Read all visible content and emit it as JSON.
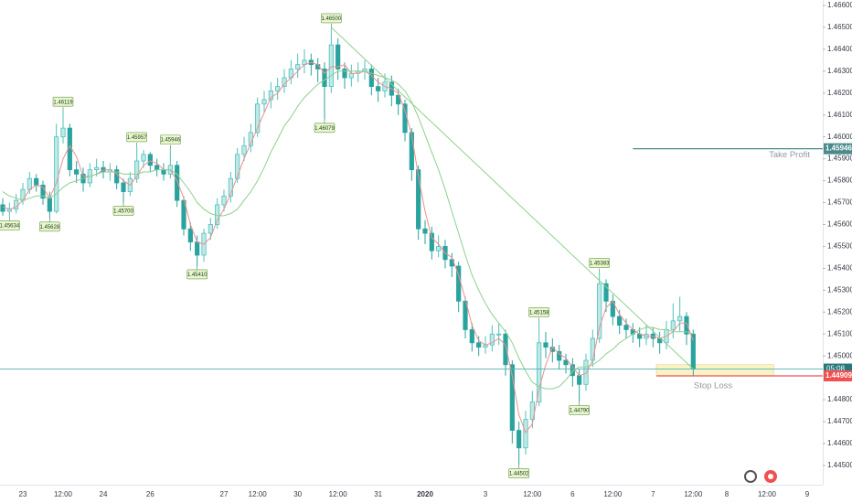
{
  "chart_data": {
    "type": "candlestick",
    "categories": [
      null,
      null,
      null,
      "23",
      null,
      null,
      null,
      null,
      null,
      "12:00",
      null,
      null,
      null,
      null,
      null,
      "24",
      null,
      null,
      null,
      null,
      null,
      null,
      "26",
      null,
      null,
      null,
      null,
      null,
      null,
      null,
      null,
      null,
      null,
      "27",
      null,
      null,
      null,
      null,
      "12:00",
      null,
      null,
      null,
      null,
      null,
      "30",
      null,
      null,
      null,
      null,
      null,
      "12:00",
      null,
      null,
      null,
      null,
      null,
      "31",
      null,
      null,
      null,
      null,
      null,
      null,
      "2020",
      null,
      null,
      null,
      null,
      null,
      null,
      null,
      null,
      "3",
      null,
      null,
      null,
      null,
      null,
      null,
      "12:00",
      null,
      null,
      null,
      null,
      null,
      "6",
      null,
      null,
      null,
      null,
      null,
      "12:00",
      null,
      null,
      null,
      null,
      null,
      "7",
      null,
      null,
      null,
      null,
      null,
      "12:00",
      null,
      null,
      null,
      null,
      "8",
      null,
      null,
      null,
      null,
      null,
      "12:00",
      null,
      null,
      null,
      null,
      null,
      "9",
      null
    ],
    "open": [
      1.4569,
      1.4566,
      1.4567,
      1.4571,
      1.4576,
      1.4581,
      1.4578,
      1.4572,
      1.4566,
      1.46,
      1.4604,
      1.4585,
      1.4583,
      1.4579,
      1.4585,
      1.4586,
      1.4584,
      1.4585,
      1.4579,
      1.4575,
      1.4581,
      1.4589,
      1.4592,
      1.4587,
      1.4585,
      1.4583,
      1.4587,
      1.4571,
      1.4558,
      1.4552,
      1.4546,
      1.4556,
      1.456,
      1.4569,
      1.4573,
      1.4581,
      1.4592,
      1.4596,
      1.4602,
      1.4615,
      1.4617,
      1.4621,
      1.4623,
      1.4627,
      1.4631,
      1.4633,
      1.4635,
      1.4633,
      1.4631,
      1.4623,
      1.4642,
      1.4631,
      1.4627,
      1.4629,
      1.463,
      1.4631,
      1.4623,
      1.4621,
      1.4625,
      1.4619,
      1.4615,
      1.4602,
      1.4585,
      1.4558,
      1.4556,
      1.4548,
      1.455,
      1.4544,
      1.4541,
      1.4525,
      1.4512,
      1.4506,
      1.4504,
      1.4505,
      1.451,
      1.451,
      1.4496,
      1.4466,
      1.4458,
      1.4471,
      1.4479,
      1.4506,
      1.4504,
      1.4502,
      1.4498,
      1.4496,
      1.4491,
      1.4487,
      1.4498,
      1.4508,
      1.4533,
      1.4525,
      1.4518,
      1.4514,
      1.4512,
      1.451,
      1.4508,
      1.451,
      1.4508,
      1.4506,
      1.4512,
      1.4516,
      1.4518,
      1.451,
      null,
      null,
      null,
      null,
      null,
      null,
      null,
      null,
      null,
      null,
      null,
      null,
      null,
      null,
      null,
      null,
      null,
      null
    ],
    "high": [
      1.4572,
      1.457,
      1.4574,
      1.4579,
      1.4584,
      1.4583,
      1.458,
      1.4575,
      1.4606,
      1.46119,
      1.4606,
      1.4589,
      1.4586,
      1.4588,
      1.459,
      1.4589,
      1.4588,
      1.4587,
      1.4581,
      1.4584,
      1.45957,
      1.4594,
      1.4593,
      1.459,
      1.4588,
      1.45946,
      1.4589,
      1.4573,
      1.4561,
      1.4555,
      1.4558,
      1.4563,
      1.4572,
      1.4576,
      1.4584,
      1.4595,
      1.46,
      1.4606,
      1.4618,
      1.4621,
      1.4625,
      1.4627,
      1.4631,
      1.4635,
      1.4638,
      1.464,
      1.4638,
      1.4636,
      1.4634,
      1.465,
      1.4645,
      1.4634,
      1.4633,
      1.4634,
      1.4635,
      1.4633,
      1.4627,
      1.4629,
      1.4628,
      1.4622,
      1.4617,
      1.4604,
      1.4587,
      1.4562,
      1.4559,
      1.4555,
      1.4553,
      1.4547,
      1.4543,
      1.4527,
      1.4515,
      1.4509,
      1.4509,
      1.4514,
      1.4515,
      1.4512,
      1.4498,
      1.447,
      1.4475,
      1.4484,
      1.45158,
      1.4511,
      1.4508,
      1.4505,
      1.4501,
      1.4499,
      1.4494,
      1.4501,
      1.4512,
      1.45383,
      1.4535,
      1.4528,
      1.4521,
      1.4517,
      1.4515,
      1.4513,
      1.4514,
      1.4513,
      1.4511,
      1.4516,
      1.4524,
      1.4527,
      1.452,
      1.4512,
      null,
      null,
      null,
      null,
      null,
      null,
      null,
      null,
      null,
      null,
      null,
      null,
      null,
      null,
      null,
      null,
      null,
      null
    ],
    "low": [
      1.4564,
      1.45634,
      1.4565,
      1.4569,
      1.4574,
      1.4575,
      1.4569,
      1.45628,
      1.4565,
      1.4597,
      1.4582,
      1.4579,
      1.4575,
      1.4577,
      1.4582,
      1.4581,
      1.458,
      1.4576,
      1.457,
      1.4573,
      1.4579,
      1.4586,
      1.4584,
      1.4582,
      1.458,
      1.4581,
      1.4568,
      1.4555,
      1.4548,
      1.4541,
      1.4543,
      1.4553,
      1.4558,
      1.4566,
      1.457,
      1.4579,
      1.4589,
      1.4593,
      1.46,
      1.4611,
      1.4613,
      1.4617,
      1.462,
      1.4624,
      1.4627,
      1.4629,
      1.4628,
      1.4625,
      1.46079,
      1.462,
      1.4626,
      1.4622,
      1.4623,
      1.4625,
      1.4626,
      1.4619,
      1.4616,
      1.4618,
      1.4614,
      1.461,
      1.4598,
      1.458,
      1.4553,
      1.4551,
      1.4544,
      1.4545,
      1.454,
      1.4536,
      1.452,
      1.4508,
      1.4502,
      1.45,
      1.4501,
      1.4502,
      1.4505,
      1.4491,
      1.446,
      1.44502,
      1.4455,
      1.4467,
      1.4477,
      1.4499,
      1.4497,
      1.4494,
      1.4492,
      1.4486,
      1.4479,
      1.4484,
      1.4495,
      1.4506,
      1.452,
      1.4514,
      1.451,
      1.4508,
      1.4506,
      1.4504,
      1.4505,
      1.4504,
      1.4501,
      1.4503,
      1.4508,
      1.4511,
      1.4505,
      1.4491,
      null,
      null,
      null,
      null,
      null,
      null,
      null,
      null,
      null,
      null,
      null,
      null,
      null,
      null,
      null,
      null,
      null,
      null
    ],
    "close": [
      1.4566,
      1.4567,
      1.4571,
      1.4576,
      1.4581,
      1.4578,
      1.4572,
      1.4566,
      1.46,
      1.4604,
      1.4585,
      1.4583,
      1.4579,
      1.4585,
      1.4586,
      1.4584,
      1.4585,
      1.4579,
      1.4575,
      1.4581,
      1.4589,
      1.4592,
      1.4587,
      1.4585,
      1.4583,
      1.4587,
      1.4571,
      1.4558,
      1.4552,
      1.4546,
      1.4556,
      1.456,
      1.4569,
      1.4573,
      1.4581,
      1.4592,
      1.4596,
      1.4602,
      1.4615,
      1.4617,
      1.4621,
      1.4623,
      1.4627,
      1.4631,
      1.4633,
      1.4635,
      1.4633,
      1.4631,
      1.4623,
      1.4642,
      1.4631,
      1.4627,
      1.4629,
      1.463,
      1.4631,
      1.4623,
      1.4621,
      1.4625,
      1.4619,
      1.4615,
      1.4602,
      1.4585,
      1.4558,
      1.4556,
      1.4548,
      1.455,
      1.4544,
      1.4541,
      1.4525,
      1.4512,
      1.4506,
      1.4504,
      1.4505,
      1.451,
      1.451,
      1.4496,
      1.4466,
      1.4458,
      1.4471,
      1.4479,
      1.4506,
      1.4504,
      1.4502,
      1.4498,
      1.4496,
      1.4491,
      1.4487,
      1.4498,
      1.4508,
      1.4533,
      1.4525,
      1.4518,
      1.4514,
      1.4512,
      1.451,
      1.4508,
      1.451,
      1.4508,
      1.4506,
      1.4512,
      1.4516,
      1.4518,
      1.451,
      1.4494,
      null,
      null,
      null,
      null,
      null,
      null,
      null,
      null,
      null,
      null,
      null,
      null,
      null,
      null,
      null,
      null,
      null,
      null
    ],
    "up_color": "#4fc1bd",
    "down_color": "#2aa39e",
    "series": [
      {
        "color": "#ef8f8f",
        "values": [
          1.4568,
          1.4567,
          1.4568,
          1.4571,
          1.4576,
          1.4578,
          1.4577,
          1.4572,
          1.4579,
          1.459,
          1.4596,
          1.4591,
          1.4582,
          1.4582,
          1.4583,
          1.4585,
          1.4585,
          1.4583,
          1.458,
          1.4578,
          1.4582,
          1.4587,
          1.4589,
          1.4588,
          1.4585,
          1.4585,
          1.458,
          1.4572,
          1.456,
          1.4552,
          1.4551,
          1.4554,
          1.4562,
          1.4567,
          1.4574,
          1.4582,
          1.459,
          1.4597,
          1.4604,
          1.4611,
          1.4618,
          1.462,
          1.4624,
          1.4627,
          1.463,
          1.4633,
          1.4634,
          1.4633,
          1.4629,
          1.4632,
          1.4632,
          1.4633,
          1.4629,
          1.4629,
          1.463,
          1.4628,
          1.4625,
          1.4623,
          1.4622,
          1.462,
          1.4612,
          1.4601,
          1.4582,
          1.4566,
          1.4554,
          1.4551,
          1.4547,
          1.4545,
          1.4537,
          1.4526,
          1.4514,
          1.4507,
          1.4505,
          1.4506,
          1.4508,
          1.4505,
          1.4491,
          1.4473,
          1.4465,
          1.4469,
          1.4485,
          1.4496,
          1.4504,
          1.4501,
          1.4499,
          1.4495,
          1.4491,
          1.4492,
          1.4498,
          1.4513,
          1.4522,
          1.4525,
          1.4519,
          1.4515,
          1.4512,
          1.451,
          1.4509,
          1.4509,
          1.4508,
          1.4509,
          1.4511,
          1.4515,
          1.4515,
          1.4507,
          null,
          null,
          null,
          null,
          null,
          null,
          null,
          null,
          null,
          null,
          null,
          null,
          null,
          null,
          null,
          null,
          null,
          null
        ]
      },
      {
        "color": "#8fcf8f",
        "values": [
          1.4575,
          1.4573,
          1.4572,
          1.4571,
          1.4572,
          1.4573,
          1.4573,
          1.4572,
          1.4574,
          1.4577,
          1.4579,
          1.458,
          1.4581,
          1.4582,
          1.4583,
          1.4584,
          1.4584,
          1.4584,
          1.4583,
          1.4583,
          1.4583,
          1.4584,
          1.4584,
          1.4585,
          1.4585,
          1.4585,
          1.4583,
          1.4579,
          1.4575,
          1.457,
          1.4567,
          1.4565,
          1.4564,
          1.4564,
          1.4565,
          1.4567,
          1.4571,
          1.4575,
          1.458,
          1.4586,
          1.4593,
          1.4599,
          1.4605,
          1.4609,
          1.4614,
          1.4618,
          1.4621,
          1.4624,
          1.4626,
          1.4628,
          1.463,
          1.463,
          1.463,
          1.463,
          1.463,
          1.4629,
          1.4628,
          1.4627,
          1.4626,
          1.4624,
          1.4621,
          1.4616,
          1.4609,
          1.4601,
          1.4593,
          1.4585,
          1.4576,
          1.4566,
          1.4556,
          1.4546,
          1.4537,
          1.453,
          1.4524,
          1.4519,
          1.4515,
          1.4511,
          1.4506,
          1.4499,
          1.4493,
          1.4488,
          1.4486,
          1.4485,
          1.4485,
          1.4486,
          1.4489,
          1.4493,
          1.4495,
          1.4495,
          1.4496,
          1.4498,
          1.4501,
          1.4503,
          1.4506,
          1.4508,
          1.451,
          1.4512,
          1.4513,
          1.4513,
          1.4512,
          1.4512,
          1.4511,
          1.4511,
          1.4511,
          1.451,
          null,
          null,
          null,
          null,
          null,
          null,
          null,
          null,
          null,
          null,
          null,
          null,
          null,
          null,
          null,
          null,
          null,
          null
        ]
      }
    ],
    "ylim": [
      1.44412,
      1.46625
    ],
    "yticks": [
      {
        "value": 1.445,
        "label": "1.44500"
      },
      {
        "value": 1.446,
        "label": "1.44600"
      },
      {
        "value": 1.447,
        "label": "1.44700"
      },
      {
        "value": 1.448,
        "label": "1.44800"
      },
      {
        "value": 1.45,
        "label": "1.45000"
      },
      {
        "value": 1.451,
        "label": "1.45100"
      },
      {
        "value": 1.452,
        "label": "1.45200"
      },
      {
        "value": 1.453,
        "label": "1.45300"
      },
      {
        "value": 1.454,
        "label": "1.45400"
      },
      {
        "value": 1.455,
        "label": "1.45500"
      },
      {
        "value": 1.456,
        "label": "1.45600"
      },
      {
        "value": 1.457,
        "label": "1.45700"
      },
      {
        "value": 1.458,
        "label": "1.45800"
      },
      {
        "value": 1.459,
        "label": "1.45900"
      },
      {
        "value": 1.46,
        "label": "1.46000"
      },
      {
        "value": 1.461,
        "label": "1.46100"
      },
      {
        "value": 1.462,
        "label": "1.46200"
      },
      {
        "value": 1.463,
        "label": "1.46300"
      },
      {
        "value": 1.464,
        "label": "1.46400"
      },
      {
        "value": 1.465,
        "label": "1.46500"
      },
      {
        "value": 1.466,
        "label": "1.46600"
      }
    ],
    "grid": false,
    "annotations": [
      {
        "index": 1,
        "value": 1.45634,
        "label": "1.45634"
      },
      {
        "index": 7,
        "value": 1.45628,
        "label": "1.45628"
      },
      {
        "index": 9,
        "value": 1.46119,
        "label": "1.46119"
      },
      {
        "index": 18,
        "value": 1.457,
        "label": "1.45700"
      },
      {
        "index": 20,
        "value": 1.45957,
        "label": "1.45957"
      },
      {
        "index": 25,
        "value": 1.45946,
        "label": "1.45946"
      },
      {
        "index": 29,
        "value": 1.4541,
        "label": "1.45410"
      },
      {
        "index": 48,
        "value": 1.46079,
        "label": "1.46079"
      },
      {
        "index": 49,
        "value": 1.465,
        "label": "1.46500"
      },
      {
        "index": 77,
        "value": 1.44502,
        "label": "1.44502"
      },
      {
        "index": 80,
        "value": 1.45158,
        "label": "1.45158"
      },
      {
        "index": 86,
        "value": 1.4479,
        "label": "1.44790"
      },
      {
        "index": 89,
        "value": 1.45383,
        "label": "1.45383"
      }
    ],
    "trend_line": {
      "color": "#8fcf8f",
      "x": [
        49,
        103
      ],
      "y": [
        1.465,
        1.4494
      ]
    },
    "take_profit": {
      "label": "Take Profit",
      "value": 1.45946,
      "value_label": "1.45946",
      "start": 94,
      "color": "#4a8a8c"
    },
    "stop_loss": {
      "label": "Stop Loss",
      "value": 1.44909,
      "value_label": "1.44909",
      "start": 97.5,
      "color": "#f0504f"
    },
    "current_price": {
      "value": 1.4494,
      "label": "05:08",
      "color": "#26787a"
    },
    "zone": {
      "from": 97.5,
      "to": 115,
      "high": 1.4496,
      "low": 1.44909,
      "color": "#fbf3c8"
    }
  }
}
